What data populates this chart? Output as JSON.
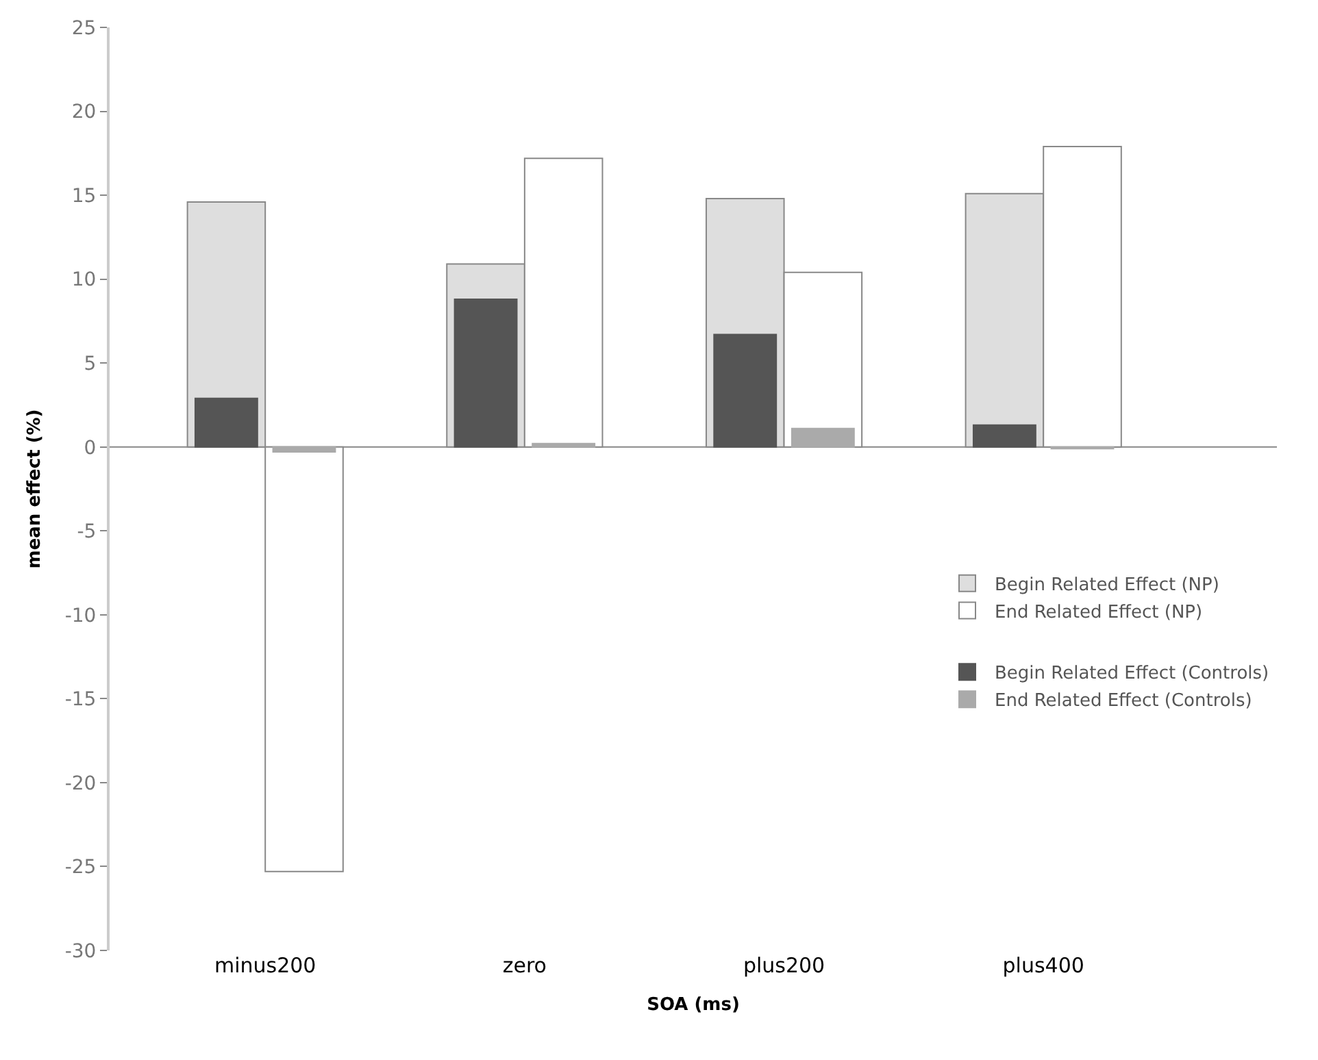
{
  "chart_data": {
    "type": "bar",
    "xlabel": "SOA (ms)",
    "ylabel": "mean effect (%)",
    "categories": [
      "minus200",
      "zero",
      "plus200",
      "plus400"
    ],
    "series": [
      {
        "name": "Begin Related Effect (NP)",
        "color": "#dedede",
        "values": [
          14.6,
          10.9,
          14.8,
          15.1
        ]
      },
      {
        "name": "End Related Effect (NP)",
        "color": "#ffffff",
        "values": [
          -25.3,
          17.2,
          10.4,
          17.9
        ]
      },
      {
        "name": "Begin Related Effect (Controls)",
        "color": "#555555",
        "values": [
          2.9,
          8.8,
          6.7,
          1.3
        ]
      },
      {
        "name": "End Related Effect (Controls)",
        "color": "#aaaaaa",
        "values": [
          -0.3,
          0.2,
          1.1,
          -0.1
        ]
      }
    ],
    "ylim": [
      -30,
      25
    ],
    "yticks": [
      -30,
      -25,
      -20,
      -15,
      -10,
      -5,
      0,
      5,
      10,
      15,
      20,
      25
    ],
    "ref_lines": [
      {
        "axis": "y",
        "value": 0,
        "color": "#888888"
      }
    ],
    "grid": false,
    "legend": "bottom right"
  }
}
